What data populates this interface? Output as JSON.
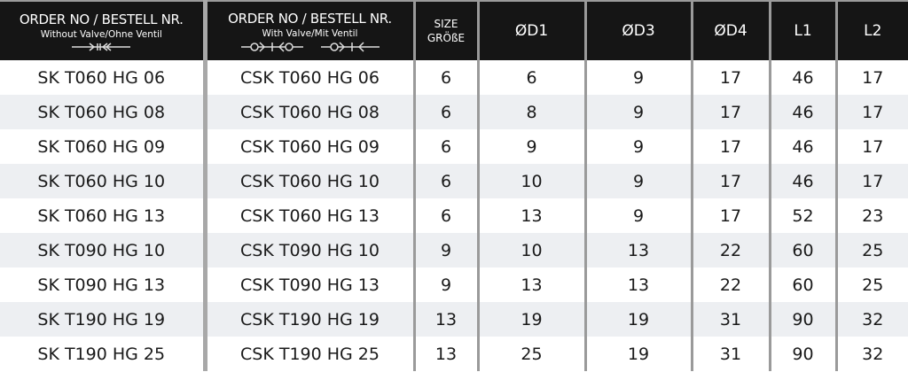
{
  "headers": {
    "order_without": {
      "title": "ORDER NO / BESTELL NR.",
      "subtitle": "Without Valve/Ohne Ventil",
      "icon": "coupling-without-valve-icon"
    },
    "order_with": {
      "title": "ORDER NO / BESTELL NR.",
      "subtitle": "With Valve/Mit Ventil",
      "icon": "coupling-with-valve-icon"
    },
    "size": {
      "line1": "SIZE",
      "line2": "GRÖßE"
    },
    "d1": "ØD1",
    "d3": "ØD3",
    "d4": "ØD4",
    "l1": "L1",
    "l2": "L2"
  },
  "rows": [
    [
      "SK T060 HG 06",
      "CSK T060 HG 06",
      "6",
      "6",
      "9",
      "17",
      "46",
      "17"
    ],
    [
      "SK T060 HG 08",
      "CSK T060 HG 08",
      "6",
      "8",
      "9",
      "17",
      "46",
      "17"
    ],
    [
      "SK T060 HG 09",
      "CSK T060 HG 09",
      "6",
      "9",
      "9",
      "17",
      "46",
      "17"
    ],
    [
      "SK T060 HG 10",
      "CSK T060 HG 10",
      "6",
      "10",
      "9",
      "17",
      "46",
      "17"
    ],
    [
      "SK T060 HG 13",
      "CSK T060 HG 13",
      "6",
      "13",
      "9",
      "17",
      "52",
      "23"
    ],
    [
      "SK T090 HG 10",
      "CSK T090 HG 10",
      "9",
      "10",
      "13",
      "22",
      "60",
      "25"
    ],
    [
      "SK T090 HG 13",
      "CSK T090 HG 13",
      "9",
      "13",
      "13",
      "22",
      "60",
      "25"
    ],
    [
      "SK T190 HG 19",
      "CSK T190 HG 19",
      "13",
      "19",
      "19",
      "31",
      "90",
      "32"
    ],
    [
      "SK T190 HG 25",
      "CSK T190 HG 25",
      "13",
      "25",
      "19",
      "31",
      "90",
      "32"
    ]
  ]
}
